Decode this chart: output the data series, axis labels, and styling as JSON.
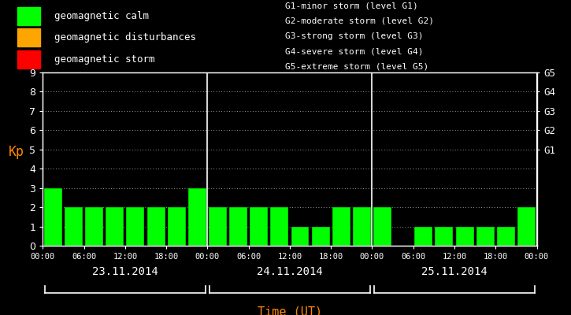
{
  "bg_color": "#000000",
  "bar_color": "#00ff00",
  "axis_color": "#ffffff",
  "text_color": "#ffffff",
  "ylabel_color": "#ff8800",
  "xlabel_color": "#ff8800",
  "legend_items": [
    {
      "label": "geomagnetic calm",
      "color": "#00ff00"
    },
    {
      "label": "geomagnetic disturbances",
      "color": "#ffa500"
    },
    {
      "label": "geomagnetic storm",
      "color": "#ff0000"
    }
  ],
  "right_legend": [
    "G1-minor storm (level G1)",
    "G2-moderate storm (level G2)",
    "G3-strong storm (level G3)",
    "G4-severe storm (level G4)",
    "G5-extreme storm (level G5)"
  ],
  "right_ytick_labels": [
    "G1",
    "G2",
    "G3",
    "G4",
    "G5"
  ],
  "right_ytick_values": [
    5,
    6,
    7,
    8,
    9
  ],
  "day1_values": [
    3,
    2,
    2,
    2,
    2,
    2,
    2,
    3
  ],
  "day2_values": [
    2,
    2,
    2,
    2,
    1,
    1,
    2,
    2
  ],
  "day3_values": [
    2,
    0,
    1,
    1,
    1,
    1,
    1,
    2
  ],
  "day_labels": [
    "23.11.2014",
    "24.11.2014",
    "25.11.2014"
  ],
  "xlabel": "Time (UT)",
  "ylabel": "Kp",
  "ylim": [
    0,
    9
  ],
  "yticks": [
    0,
    1,
    2,
    3,
    4,
    5,
    6,
    7,
    8,
    9
  ],
  "xtick_positions": [
    0,
    2,
    4,
    6,
    8,
    10,
    12,
    14,
    16,
    18,
    20,
    22,
    24
  ],
  "xtick_labels": [
    "00:00",
    "06:00",
    "12:00",
    "18:00",
    "00:00",
    "06:00",
    "12:00",
    "18:00",
    "00:00",
    "06:00",
    "12:00",
    "18:00",
    "00:00"
  ]
}
